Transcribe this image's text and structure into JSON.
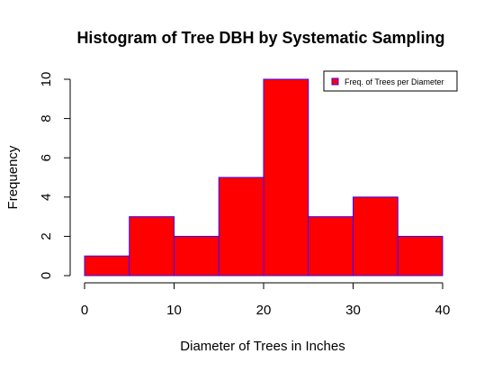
{
  "chart_data": {
    "type": "bar",
    "title": "Histogram of Tree DBH by Systematic Sampling",
    "xlabel": "Diameter of Trees in Inches",
    "ylabel": "Frequency",
    "bins": [
      {
        "from": 0,
        "to": 5,
        "value": 1
      },
      {
        "from": 5,
        "to": 10,
        "value": 3
      },
      {
        "from": 10,
        "to": 15,
        "value": 2
      },
      {
        "from": 15,
        "to": 20,
        "value": 5
      },
      {
        "from": 20,
        "to": 25,
        "value": 10
      },
      {
        "from": 25,
        "to": 30,
        "value": 3
      },
      {
        "from": 30,
        "to": 35,
        "value": 4
      },
      {
        "from": 35,
        "to": 40,
        "value": 2
      }
    ],
    "xlim": [
      0,
      40
    ],
    "ylim": [
      0,
      10
    ],
    "xticks": [
      "0",
      "10",
      "20",
      "30",
      "40"
    ],
    "yticks": [
      "0",
      "2",
      "4",
      "6",
      "8",
      "10"
    ],
    "legend": {
      "label": "Freq. of Trees per Diameter",
      "placement": "top-right"
    },
    "colors": {
      "fill": "#ff0000",
      "border": "#3a00ff"
    }
  }
}
